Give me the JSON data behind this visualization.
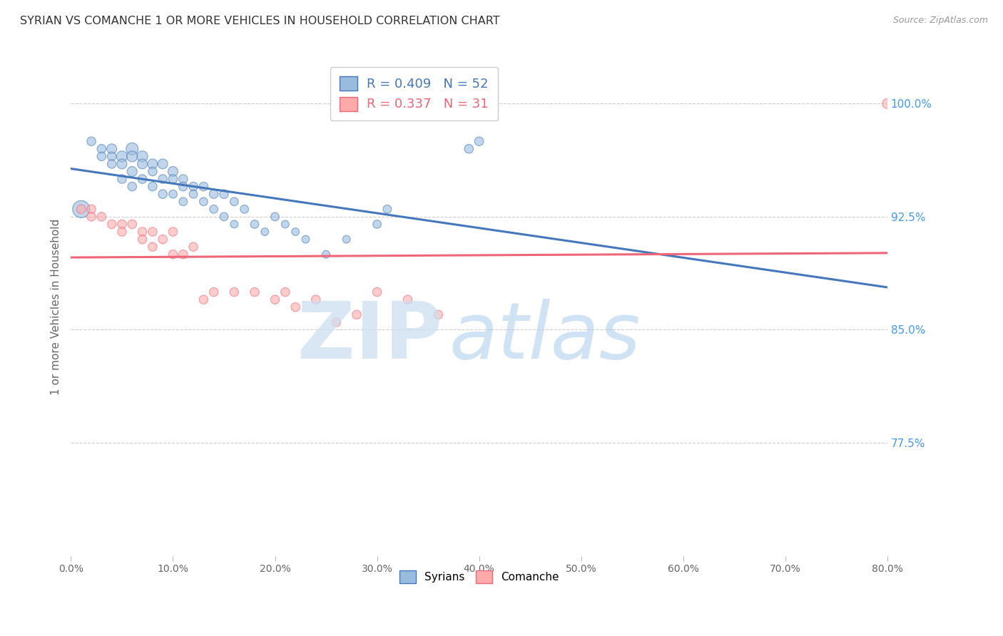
{
  "title": "SYRIAN VS COMANCHE 1 OR MORE VEHICLES IN HOUSEHOLD CORRELATION CHART",
  "source": "Source: ZipAtlas.com",
  "ylabel": "1 or more Vehicles in Household",
  "xlim": [
    0.0,
    0.8
  ],
  "ylim": [
    0.7,
    1.03
  ],
  "yticks": [
    0.775,
    0.85,
    0.925,
    1.0
  ],
  "ytick_labels": [
    "77.5%",
    "85.0%",
    "92.5%",
    "100.0%"
  ],
  "xticks": [
    0.0,
    0.1,
    0.2,
    0.3,
    0.4,
    0.5,
    0.6,
    0.7,
    0.8
  ],
  "xtick_labels": [
    "0.0%",
    "10.0%",
    "20.0%",
    "30.0%",
    "40.0%",
    "50.0%",
    "60.0%",
    "70.0%",
    "80.0%"
  ],
  "blue_color": "#99BBDD",
  "pink_color": "#FFAAAA",
  "line_blue": "#4477BB",
  "line_pink": "#EE6677",
  "legend_blue_r": "0.409",
  "legend_blue_n": "52",
  "legend_pink_r": "0.337",
  "legend_pink_n": "31",
  "title_color": "#333333",
  "axis_label_color": "#666666",
  "tick_color_right": "#4499EE",
  "grid_color": "#CCCCCC",
  "syrians_x": [
    0.01,
    0.02,
    0.03,
    0.03,
    0.04,
    0.04,
    0.04,
    0.05,
    0.05,
    0.05,
    0.06,
    0.06,
    0.06,
    0.06,
    0.07,
    0.07,
    0.07,
    0.08,
    0.08,
    0.08,
    0.09,
    0.09,
    0.09,
    0.1,
    0.1,
    0.1,
    0.11,
    0.11,
    0.11,
    0.12,
    0.12,
    0.13,
    0.13,
    0.14,
    0.14,
    0.15,
    0.15,
    0.16,
    0.16,
    0.17,
    0.18,
    0.19,
    0.2,
    0.21,
    0.22,
    0.23,
    0.25,
    0.27,
    0.3,
    0.31,
    0.39,
    0.4
  ],
  "syrians_y": [
    0.93,
    0.975,
    0.97,
    0.965,
    0.97,
    0.965,
    0.96,
    0.965,
    0.96,
    0.95,
    0.97,
    0.965,
    0.955,
    0.945,
    0.965,
    0.96,
    0.95,
    0.96,
    0.955,
    0.945,
    0.96,
    0.95,
    0.94,
    0.955,
    0.95,
    0.94,
    0.95,
    0.945,
    0.935,
    0.945,
    0.94,
    0.945,
    0.935,
    0.94,
    0.93,
    0.94,
    0.925,
    0.935,
    0.92,
    0.93,
    0.92,
    0.915,
    0.925,
    0.92,
    0.915,
    0.91,
    0.9,
    0.91,
    0.92,
    0.93,
    0.97,
    0.975
  ],
  "syrians_size": [
    300,
    80,
    80,
    80,
    100,
    80,
    80,
    120,
    100,
    80,
    150,
    120,
    100,
    80,
    120,
    100,
    80,
    100,
    80,
    80,
    100,
    80,
    80,
    100,
    80,
    70,
    80,
    80,
    70,
    80,
    70,
    80,
    70,
    80,
    70,
    80,
    70,
    70,
    60,
    70,
    70,
    60,
    70,
    60,
    60,
    60,
    60,
    60,
    70,
    70,
    80,
    80
  ],
  "comanche_x": [
    0.01,
    0.02,
    0.02,
    0.03,
    0.04,
    0.05,
    0.05,
    0.06,
    0.07,
    0.07,
    0.08,
    0.08,
    0.09,
    0.1,
    0.1,
    0.11,
    0.12,
    0.13,
    0.14,
    0.16,
    0.18,
    0.2,
    0.21,
    0.22,
    0.24,
    0.26,
    0.28,
    0.3,
    0.33,
    0.36,
    0.8
  ],
  "comanche_y": [
    0.93,
    0.93,
    0.925,
    0.925,
    0.92,
    0.92,
    0.915,
    0.92,
    0.915,
    0.91,
    0.915,
    0.905,
    0.91,
    0.915,
    0.9,
    0.9,
    0.905,
    0.87,
    0.875,
    0.875,
    0.875,
    0.87,
    0.875,
    0.865,
    0.87,
    0.855,
    0.86,
    0.875,
    0.87,
    0.86,
    1.0
  ],
  "comanche_size": [
    80,
    80,
    80,
    80,
    80,
    80,
    80,
    80,
    80,
    80,
    80,
    80,
    80,
    80,
    80,
    80,
    80,
    80,
    80,
    80,
    80,
    80,
    80,
    80,
    80,
    80,
    80,
    80,
    80,
    80,
    100
  ]
}
